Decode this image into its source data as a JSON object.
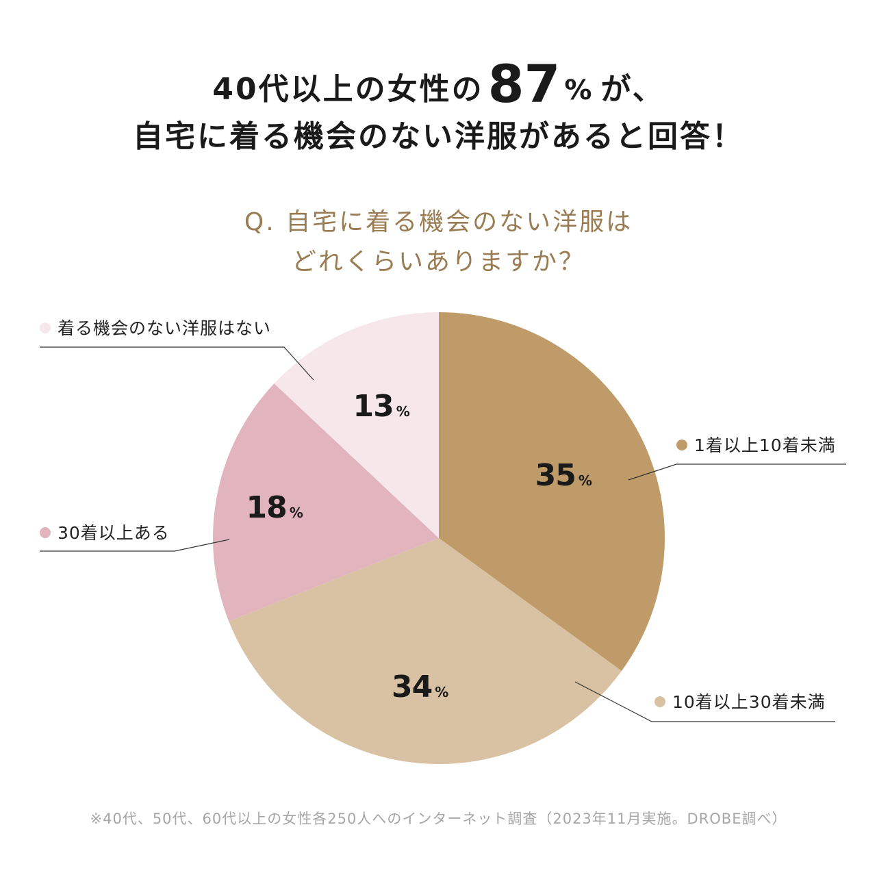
{
  "headline": {
    "line1_prefix": "40代以上の女性の",
    "line1_number": "87",
    "line1_unit": "%",
    "line1_suffix": "が、",
    "line2": "自宅に着る機会のない洋服があると回答！"
  },
  "question": {
    "line1": "Q. 自宅に着る機会のない洋服は",
    "line2": "どれくらいありますか？"
  },
  "chart_data": {
    "type": "pie",
    "unit": "%",
    "slices": [
      {
        "label": "1着以上10着未満",
        "value": 35,
        "color": "#be9b69"
      },
      {
        "label": "10着以上30着未満",
        "value": 34,
        "color": "#d9c2a3"
      },
      {
        "label": "30着以上ある",
        "value": 18,
        "color": "#e2b4be"
      },
      {
        "label": "着る機会のない洋服はない",
        "value": 13,
        "color": "#f5e7ea"
      }
    ]
  },
  "footnote": "※40代、50代、60代以上の女性各250人へのインターネット調査（2023年11月実施。DROBE調べ）"
}
